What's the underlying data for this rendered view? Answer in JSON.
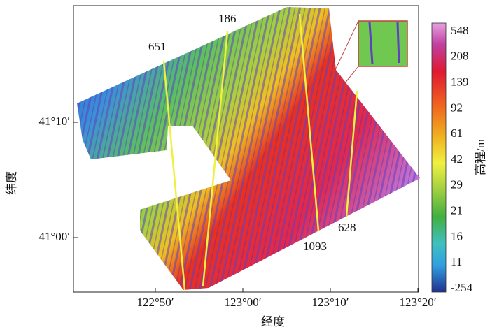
{
  "x_axis": {
    "label": "经度",
    "ticks": [
      "122°50′",
      "123°00′",
      "123°10′",
      "123°20′"
    ]
  },
  "y_axis": {
    "label": "纬度",
    "ticks": [
      "41°10′",
      "41°00′"
    ]
  },
  "colorbar": {
    "title": "高程/m",
    "labels": [
      548,
      208,
      139,
      92,
      61,
      42,
      29,
      21,
      16,
      11,
      -254
    ]
  },
  "track_labels": [
    "651",
    "186",
    "628",
    "1093"
  ]
}
